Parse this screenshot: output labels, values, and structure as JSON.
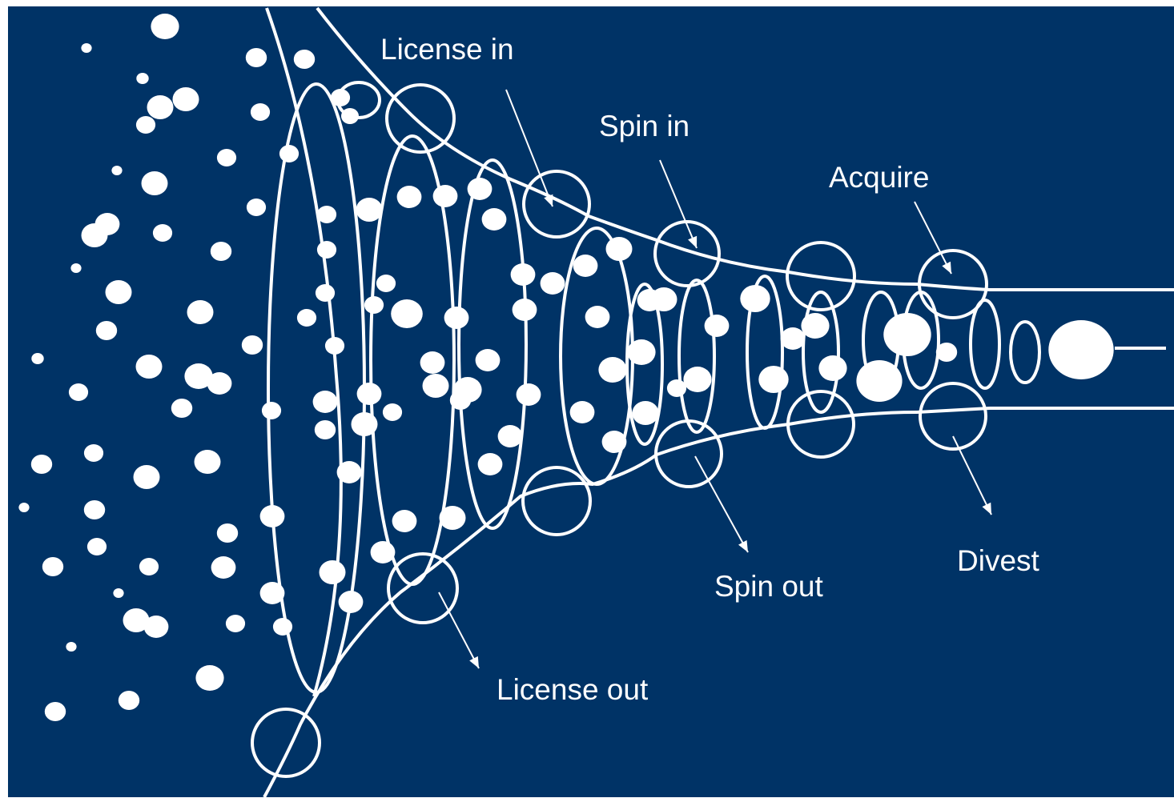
{
  "colors": {
    "background": "#003366",
    "foreground": "#ffffff"
  },
  "labels": {
    "license_in": "License in",
    "spin_in": "Spin in",
    "acquire": "Acquire",
    "license_out": "License out",
    "spin_out": "Spin out",
    "divest": "Divest"
  }
}
